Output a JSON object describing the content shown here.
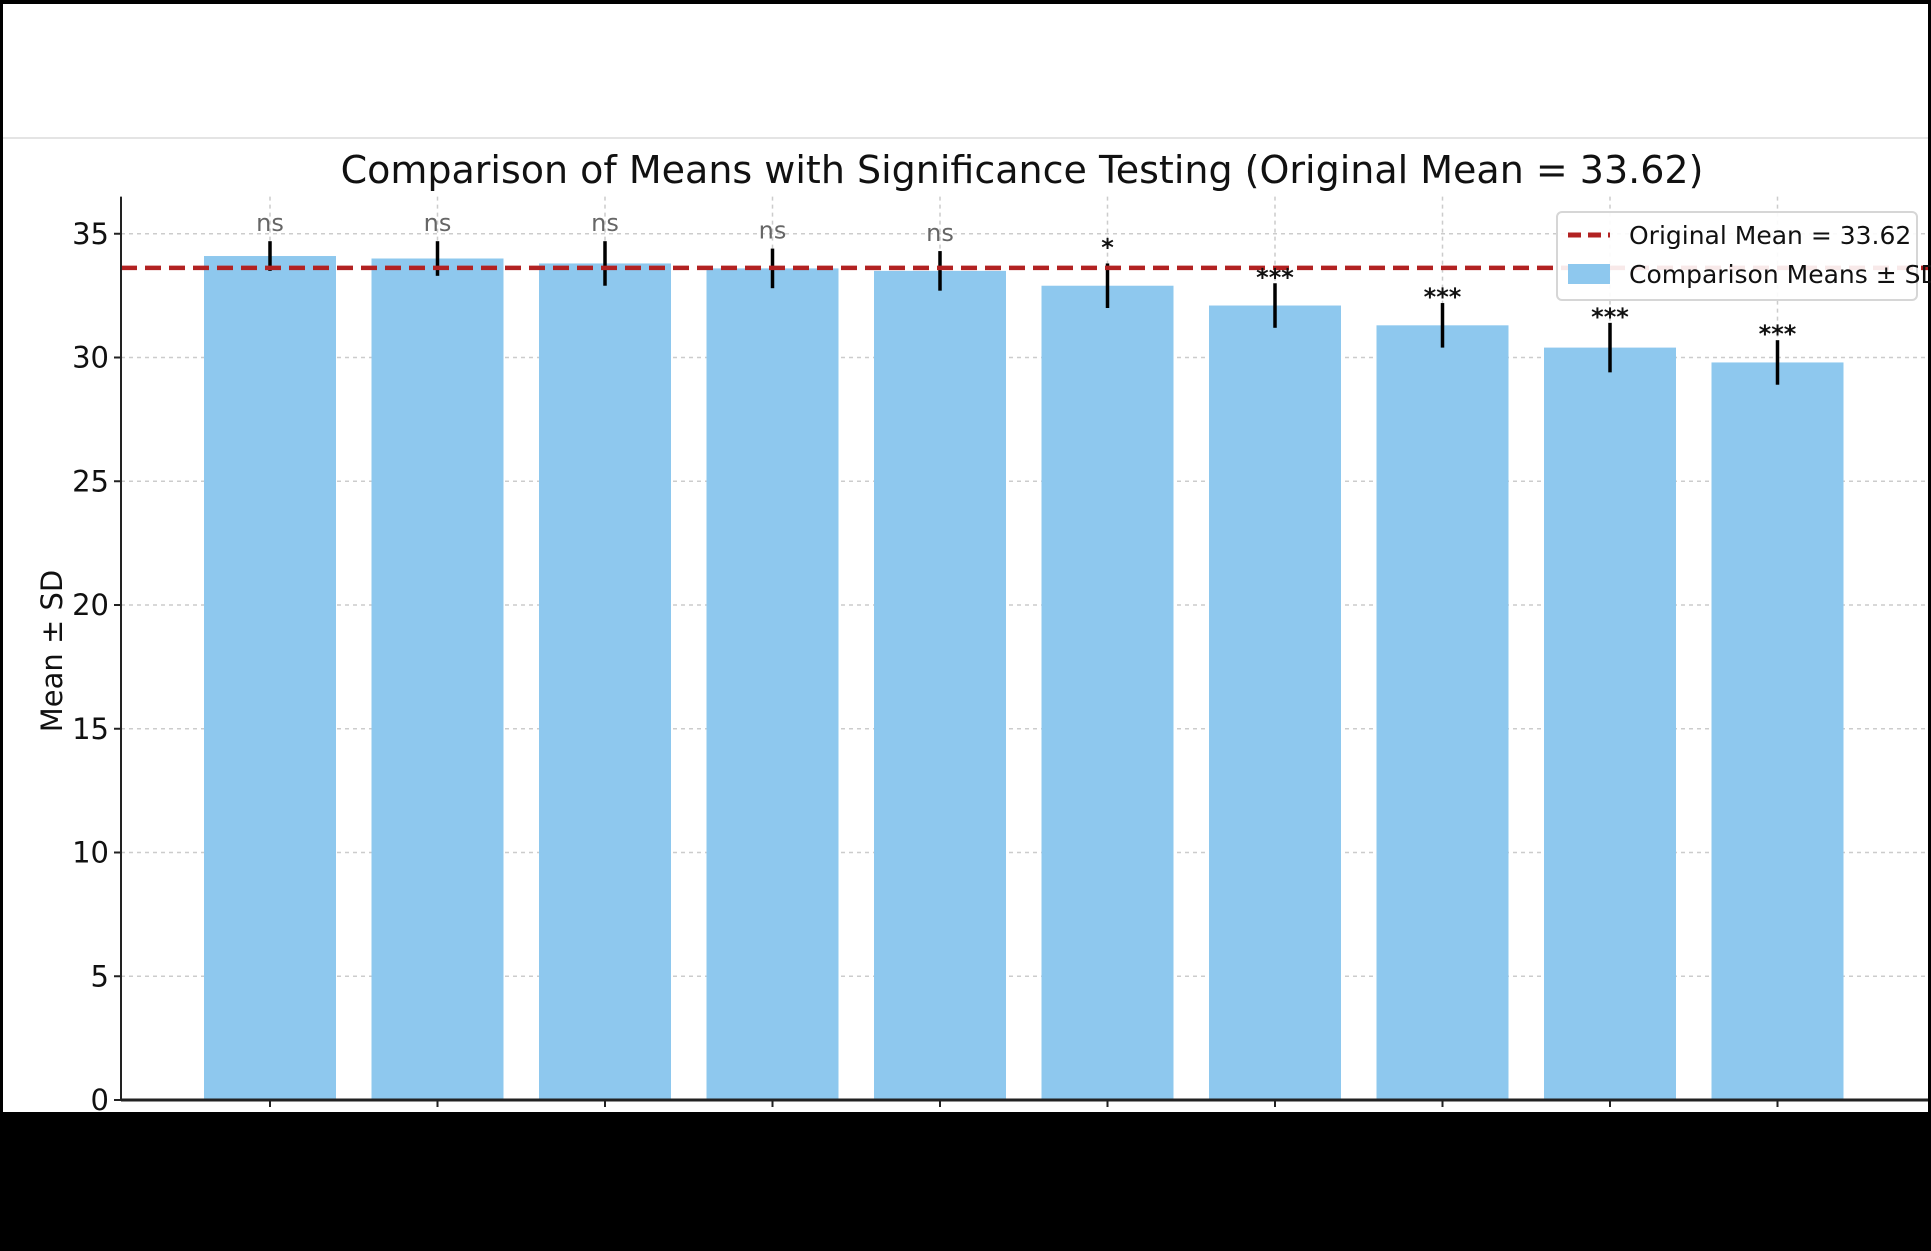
{
  "chart_data": {
    "type": "bar",
    "title": "Comparison of Means with Significance Testing (Original Mean = 33.62)",
    "xlabel": "",
    "ylabel": "Mean ± SD",
    "ylim": [
      0,
      36.5
    ],
    "yticks": [
      0,
      5,
      10,
      15,
      20,
      25,
      30,
      35
    ],
    "grid": true,
    "legend_position": "top-right",
    "reference_line": {
      "name": "Original Mean = 33.62",
      "value": 33.62,
      "style": "dashed",
      "color": "#b22222"
    },
    "series": [
      {
        "name": "Comparison Means ± SD",
        "color": "#8ec8ee",
        "values": [
          34.1,
          34.0,
          33.8,
          33.6,
          33.5,
          32.9,
          32.1,
          31.3,
          30.4,
          29.8
        ],
        "sd": [
          0.6,
          0.7,
          0.9,
          0.8,
          0.8,
          0.9,
          0.9,
          0.9,
          1.0,
          0.9
        ],
        "significance": [
          "ns",
          "ns",
          "ns",
          "ns",
          "ns",
          "*",
          "***",
          "***",
          "***",
          "***"
        ]
      }
    ]
  },
  "colors": {
    "bar": "#8ec8ee",
    "reference_line": "#b22222",
    "grid": "#cccccc",
    "ns_label": "#666666",
    "sig_label": "#111111",
    "frame": "#000000"
  }
}
